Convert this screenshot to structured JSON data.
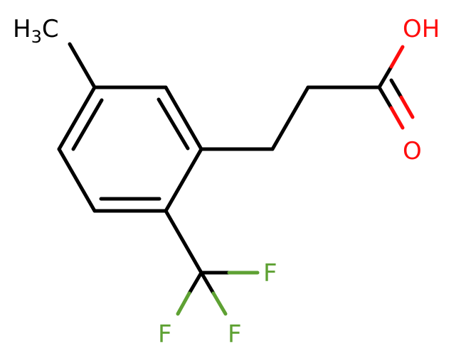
{
  "molecule": {
    "atoms": {
      "methyl": {
        "main": "H",
        "sub": "3",
        "tail": "C"
      },
      "hydroxyl": "OH",
      "carbonyl_oxygen": "O",
      "fluorine_1": "F",
      "fluorine_2": "F",
      "fluorine_3": "F"
    },
    "colors": {
      "bond": "#000000",
      "carbon_label": "#000000",
      "oxygen": "#ff0d0d",
      "fluorine": "#5ea133"
    }
  }
}
